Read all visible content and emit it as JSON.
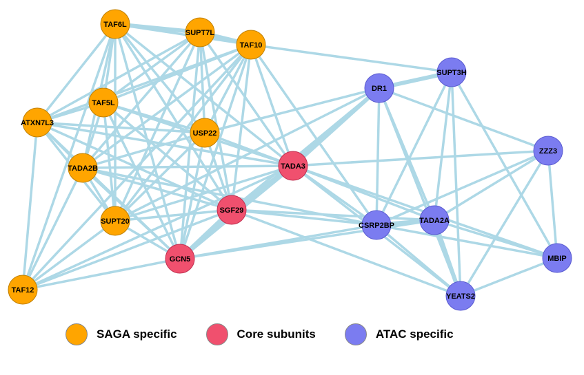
{
  "colors": {
    "saga": "#ffa500",
    "core": "#f0506e",
    "atac": "#7b7cf0",
    "edge": "#add8e6"
  },
  "legend": [
    {
      "label": "SAGA specific",
      "group": "saga"
    },
    {
      "label": "Core subunits",
      "group": "core"
    },
    {
      "label": "ATAC specific",
      "group": "atac"
    }
  ],
  "nodes": [
    {
      "id": "TAF6L",
      "group": "saga"
    },
    {
      "id": "SUPT7L",
      "group": "saga"
    },
    {
      "id": "TAF10",
      "group": "saga"
    },
    {
      "id": "TAF5L",
      "group": "saga"
    },
    {
      "id": "ATXN7L3",
      "group": "saga"
    },
    {
      "id": "USP22",
      "group": "saga"
    },
    {
      "id": "TADA2B",
      "group": "saga"
    },
    {
      "id": "SUPT20",
      "group": "saga"
    },
    {
      "id": "TAF12",
      "group": "saga"
    },
    {
      "id": "TADA3",
      "group": "core"
    },
    {
      "id": "SGF29",
      "group": "core"
    },
    {
      "id": "GCN5",
      "group": "core"
    },
    {
      "id": "DR1",
      "group": "atac"
    },
    {
      "id": "SUPT3H",
      "group": "atac"
    },
    {
      "id": "ZZZ3",
      "group": "atac"
    },
    {
      "id": "CSRP2BP",
      "group": "atac"
    },
    {
      "id": "TADA2A",
      "group": "atac"
    },
    {
      "id": "MBIP",
      "group": "atac"
    },
    {
      "id": "YEATS2",
      "group": "atac"
    }
  ],
  "edges": [
    [
      "TAF6L",
      "SUPT7L"
    ],
    [
      "TAF6L",
      "TAF10"
    ],
    [
      "TAF6L",
      "TAF5L"
    ],
    [
      "TAF6L",
      "ATXN7L3"
    ],
    [
      "TAF6L",
      "USP22"
    ],
    [
      "TAF6L",
      "TADA2B"
    ],
    [
      "TAF6L",
      "SUPT20"
    ],
    [
      "TAF6L",
      "TADA3"
    ],
    [
      "TAF6L",
      "SGF29"
    ],
    [
      "TAF6L",
      "GCN5"
    ],
    [
      "TAF6L",
      "TAF12"
    ],
    [
      "SUPT7L",
      "TAF10"
    ],
    [
      "SUPT7L",
      "TAF5L"
    ],
    [
      "SUPT7L",
      "ATXN7L3"
    ],
    [
      "SUPT7L",
      "USP22"
    ],
    [
      "SUPT7L",
      "TADA2B"
    ],
    [
      "SUPT7L",
      "SUPT20"
    ],
    [
      "SUPT7L",
      "TADA3"
    ],
    [
      "SUPT7L",
      "SGF29"
    ],
    [
      "SUPT7L",
      "GCN5"
    ],
    [
      "TAF10",
      "TAF5L"
    ],
    [
      "TAF10",
      "ATXN7L3"
    ],
    [
      "TAF10",
      "USP22"
    ],
    [
      "TAF10",
      "TADA2B"
    ],
    [
      "TAF10",
      "SUPT20"
    ],
    [
      "TAF10",
      "TADA3"
    ],
    [
      "TAF10",
      "SGF29"
    ],
    [
      "TAF10",
      "GCN5"
    ],
    [
      "TAF10",
      "SUPT3H"
    ],
    [
      "TAF10",
      "CSRP2BP"
    ],
    [
      "TAF10",
      "TAF12"
    ],
    [
      "TAF5L",
      "ATXN7L3"
    ],
    [
      "TAF5L",
      "USP22"
    ],
    [
      "TAF5L",
      "TADA2B"
    ],
    [
      "TAF5L",
      "SUPT20"
    ],
    [
      "TAF5L",
      "TADA3"
    ],
    [
      "TAF5L",
      "SGF29"
    ],
    [
      "TAF5L",
      "GCN5"
    ],
    [
      "ATXN7L3",
      "USP22"
    ],
    [
      "ATXN7L3",
      "TADA2B"
    ],
    [
      "ATXN7L3",
      "SUPT20"
    ],
    [
      "ATXN7L3",
      "TADA3"
    ],
    [
      "ATXN7L3",
      "SGF29"
    ],
    [
      "ATXN7L3",
      "GCN5"
    ],
    [
      "ATXN7L3",
      "TAF12"
    ],
    [
      "USP22",
      "TADA2B"
    ],
    [
      "USP22",
      "SUPT20"
    ],
    [
      "USP22",
      "TADA3"
    ],
    [
      "USP22",
      "SGF29"
    ],
    [
      "USP22",
      "GCN5"
    ],
    [
      "USP22",
      "DR1"
    ],
    [
      "TADA2B",
      "SUPT20"
    ],
    [
      "TADA2B",
      "TADA3"
    ],
    [
      "TADA2B",
      "SGF29"
    ],
    [
      "TADA2B",
      "GCN5"
    ],
    [
      "TADA2B",
      "TAF12"
    ],
    [
      "TADA2B",
      "CSRP2BP"
    ],
    [
      "SUPT20",
      "TADA3"
    ],
    [
      "SUPT20",
      "SGF29"
    ],
    [
      "SUPT20",
      "GCN5"
    ],
    [
      "SUPT20",
      "TAF12"
    ],
    [
      "SUPT20",
      "DR1"
    ],
    [
      "TAF12",
      "SGF29"
    ],
    [
      "TAF12",
      "GCN5"
    ],
    [
      "TAF12",
      "TADA3"
    ],
    [
      "TADA3",
      "SGF29"
    ],
    [
      "TADA3",
      "GCN5"
    ],
    [
      "TADA3",
      "DR1"
    ],
    [
      "TADA3",
      "CSRP2BP"
    ],
    [
      "TADA3",
      "TADA2A"
    ],
    [
      "TADA3",
      "ZZZ3"
    ],
    [
      "TADA3",
      "YEATS2"
    ],
    [
      "TADA3",
      "MBIP"
    ],
    [
      "SGF29",
      "GCN5"
    ],
    [
      "SGF29",
      "DR1"
    ],
    [
      "SGF29",
      "CSRP2BP"
    ],
    [
      "SGF29",
      "TADA2A"
    ],
    [
      "SGF29",
      "YEATS2"
    ],
    [
      "GCN5",
      "DR1"
    ],
    [
      "GCN5",
      "CSRP2BP"
    ],
    [
      "GCN5",
      "TADA2A"
    ],
    [
      "DR1",
      "SUPT3H"
    ],
    [
      "DR1",
      "CSRP2BP"
    ],
    [
      "DR1",
      "TADA2A"
    ],
    [
      "DR1",
      "ZZZ3"
    ],
    [
      "DR1",
      "YEATS2"
    ],
    [
      "SUPT3H",
      "CSRP2BP"
    ],
    [
      "SUPT3H",
      "TADA2A"
    ],
    [
      "SUPT3H",
      "YEATS2"
    ],
    [
      "SUPT3H",
      "MBIP"
    ],
    [
      "ZZZ3",
      "CSRP2BP"
    ],
    [
      "ZZZ3",
      "TADA2A"
    ],
    [
      "ZZZ3",
      "MBIP"
    ],
    [
      "ZZZ3",
      "YEATS2"
    ],
    [
      "CSRP2BP",
      "TADA2A"
    ],
    [
      "CSRP2BP",
      "MBIP"
    ],
    [
      "CSRP2BP",
      "YEATS2"
    ],
    [
      "TADA2A",
      "MBIP"
    ],
    [
      "TADA2A",
      "YEATS2"
    ],
    [
      "MBIP",
      "YEATS2"
    ]
  ]
}
